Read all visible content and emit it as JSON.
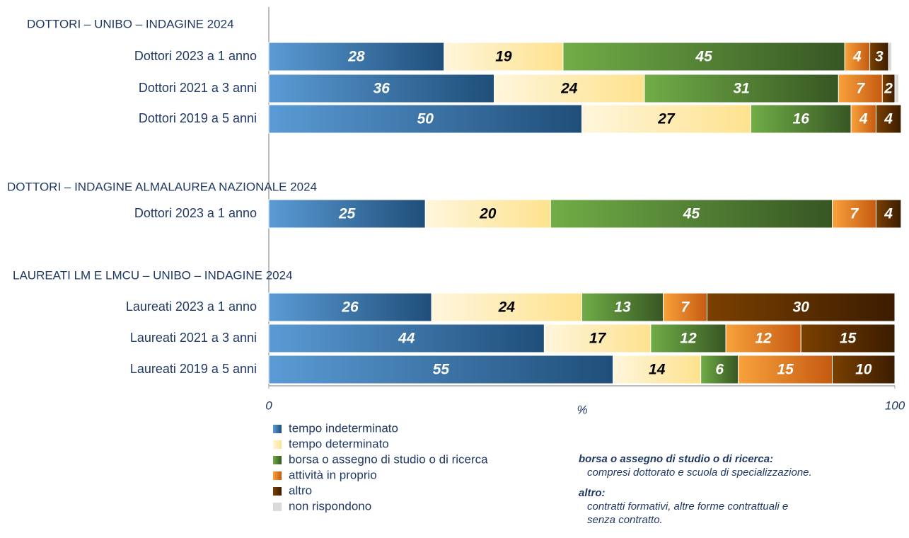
{
  "chart_data": {
    "type": "stacked_barh",
    "groups": [
      {
        "title": "DOTTORI – UNIBO – INDAGINE 2024",
        "categories": [
          "Dottori 2023 a 1 anno",
          "Dottori 2021 a 3 anni",
          "Dottori 2019 a 5 anni"
        ]
      },
      {
        "title": "DOTTORI – INDAGINE ALMALAUREA NAZIONALE 2024",
        "categories": [
          "Dottori 2023 a 1 anno"
        ]
      },
      {
        "title": "LAUREATI LM E LMCU – UNIBO – INDAGINE 2024",
        "categories": [
          "Laureati 2023 a 1 anno",
          "Laureati 2021 a 3 anni",
          "Laureati 2019 a 5 anni"
        ]
      }
    ],
    "series": [
      {
        "name": "tempo indeterminato",
        "color": "#1f4e79",
        "color_light": "#5b9bd5",
        "label_color": "#ffffff",
        "values": [
          28,
          36,
          50,
          25,
          26,
          44,
          55
        ]
      },
      {
        "name": "tempo determinato",
        "color": "#fde28e",
        "color_light": "#fff6dc",
        "label_color": "#000000",
        "values": [
          19,
          24,
          27,
          20,
          24,
          17,
          14
        ]
      },
      {
        "name": "borsa o assegno di studio o di ricerca",
        "color": "#375623",
        "color_light": "#70ad47",
        "label_color": "#ffffff",
        "values": [
          45,
          31,
          16,
          45,
          13,
          12,
          6
        ]
      },
      {
        "name": "attività in proprio",
        "color": "#c55a11",
        "color_light": "#f8a23c",
        "label_color": "#ffffff",
        "values": [
          4,
          7,
          4,
          7,
          7,
          12,
          15
        ]
      },
      {
        "name": "altro",
        "color": "#3b1c00",
        "color_light": "#7a4000",
        "label_color": "#ffffff",
        "values": [
          3,
          2,
          4,
          4,
          30,
          15,
          10
        ]
      },
      {
        "name": "non rispondono",
        "color": "#d9d9d9",
        "color_light": "#d9d9d9",
        "label_color": "#000000",
        "show_labels": false,
        "values": [
          0.5,
          0.6,
          null,
          null,
          null,
          null,
          null
        ]
      }
    ],
    "xlim": [
      0,
      100
    ],
    "xticks": [
      0,
      100
    ],
    "xlabel": "%",
    "notes": [
      {
        "title": "borsa o assegno di studio o di ricerca:",
        "lines": [
          "compresi dottorato e scuola di specializzazione."
        ]
      },
      {
        "title": "altro:",
        "lines": [
          "contratti formativi, altre forme contrattuali e",
          "senza contratto."
        ]
      }
    ]
  }
}
